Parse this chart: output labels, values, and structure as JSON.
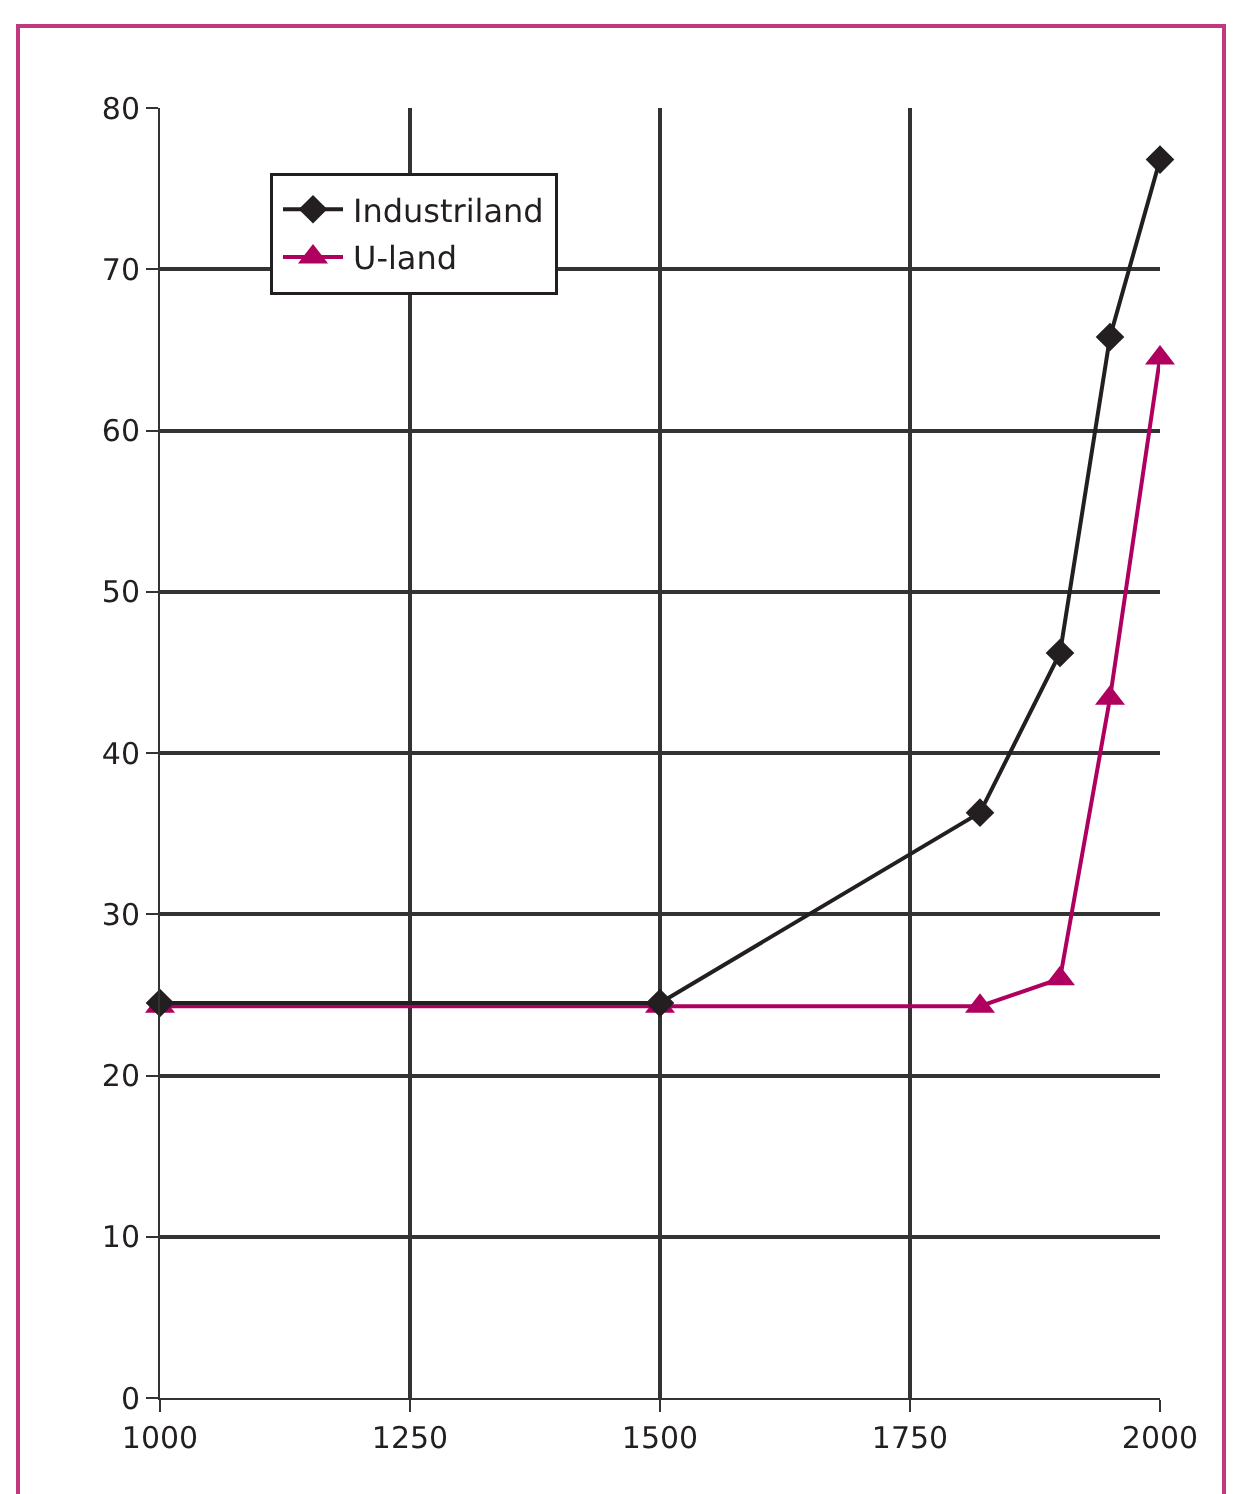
{
  "chart_data": {
    "type": "line",
    "x": [
      1000,
      1500,
      1820,
      1900,
      1950,
      2000
    ],
    "series": [
      {
        "name": "Industriland",
        "color": "#231f20",
        "marker": "diamond",
        "values": [
          24.5,
          24.5,
          36.3,
          46.2,
          65.8,
          76.8
        ]
      },
      {
        "name": "U-land",
        "color": "#b0005f",
        "marker": "triangle",
        "values": [
          24.3,
          24.3,
          24.3,
          26.0,
          43.4,
          64.5
        ]
      }
    ],
    "xlim": [
      1000,
      2000
    ],
    "xticks": [
      1000,
      1250,
      1500,
      1750,
      2000
    ],
    "ylim": [
      0,
      80
    ],
    "yticks": [
      0,
      10,
      20,
      30,
      40,
      50,
      60,
      70,
      80
    ],
    "grid": true,
    "legend": "top left",
    "line_style": "solid"
  }
}
